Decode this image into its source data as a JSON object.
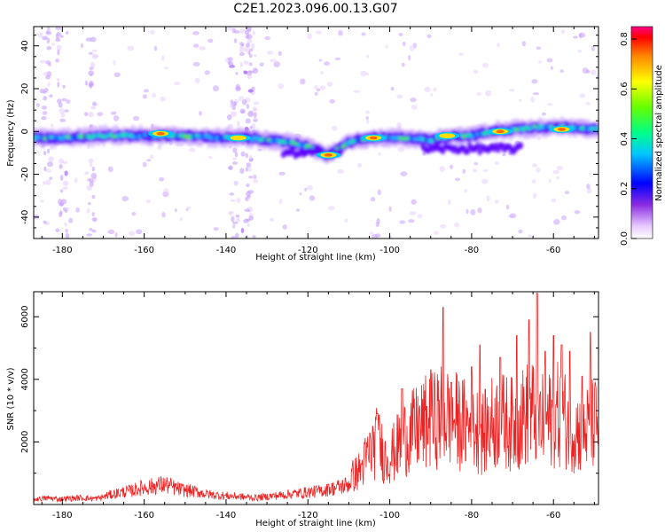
{
  "title": "C2E1.2023.096.00.13.G07",
  "chart_data": [
    {
      "type": "heatmap",
      "xlabel": "Height of straight line (km)",
      "ylabel": "Frequency (Hz)",
      "xlim": [
        -187,
        -49
      ],
      "ylim": [
        -50,
        49
      ],
      "x_ticks": [
        -180,
        -160,
        -140,
        -120,
        -100,
        -80,
        -60
      ],
      "y_ticks": [
        -40,
        -20,
        0,
        20,
        40
      ],
      "colorbar": {
        "label": "Normalized spectral amplitude",
        "range": [
          0.0,
          0.85
        ],
        "ticks": [
          0.0,
          0.2,
          0.4,
          0.6,
          0.8
        ]
      },
      "trace": {
        "x": [
          -187,
          -180,
          -170,
          -160,
          -150,
          -140,
          -135,
          -130,
          -125,
          -120,
          -115,
          -110,
          -105,
          -100,
          -95,
          -90,
          -85,
          -80,
          -75,
          -70,
          -65,
          -60,
          -55,
          -50
        ],
        "y": [
          -3,
          -3,
          -2,
          -2,
          -2,
          -3,
          -3,
          -4,
          -5,
          -7,
          -11,
          -5,
          -3,
          -3,
          -3,
          -4,
          -2,
          -2,
          0,
          1,
          2,
          2,
          2,
          1
        ]
      },
      "hotspots": [
        {
          "x": -156,
          "y": -1,
          "value": 0.85
        },
        {
          "x": -137,
          "y": -3,
          "value": 0.8
        },
        {
          "x": -115,
          "y": -11,
          "value": 0.85
        },
        {
          "x": -104,
          "y": -3,
          "value": 0.85
        },
        {
          "x": -86,
          "y": -2,
          "value": 0.8
        },
        {
          "x": -73,
          "y": 0,
          "value": 0.85
        },
        {
          "x": -58,
          "y": 1,
          "value": 0.85
        }
      ]
    },
    {
      "type": "line",
      "xlabel": "Height of straight line (km)",
      "ylabel": "SNR (10 * v/v)",
      "xlim": [
        -187,
        -49
      ],
      "ylim": [
        0,
        6800
      ],
      "x_ticks": [
        -180,
        -160,
        -140,
        -120,
        -100,
        -80,
        -60
      ],
      "y_ticks": [
        2000,
        4000,
        6000
      ],
      "series": [
        {
          "color": "#ee2222",
          "x": [
            -187,
            -185,
            -183,
            -181,
            -179,
            -177,
            -175,
            -173,
            -171,
            -169,
            -167,
            -165,
            -163,
            -161,
            -159,
            -157,
            -155,
            -153,
            -151,
            -149,
            -147,
            -145,
            -143,
            -141,
            -139,
            -137,
            -135,
            -133,
            -131,
            -129,
            -127,
            -125,
            -123,
            -121,
            -119,
            -117,
            -115,
            -113,
            -111,
            -109,
            -107,
            -105,
            -103,
            -101,
            -99,
            -97,
            -95,
            -93,
            -91,
            -89,
            -87,
            -85,
            -83,
            -81,
            -79,
            -77,
            -75,
            -73,
            -71,
            -69,
            -67,
            -65,
            -63,
            -61,
            -59,
            -57,
            -55,
            -53,
            -51,
            -49
          ],
          "values": [
            250,
            280,
            300,
            260,
            280,
            300,
            320,
            280,
            300,
            420,
            520,
            600,
            650,
            780,
            820,
            900,
            950,
            820,
            700,
            650,
            600,
            500,
            450,
            420,
            400,
            380,
            350,
            320,
            350,
            400,
            430,
            480,
            520,
            560,
            600,
            640,
            720,
            800,
            900,
            1050,
            1300,
            1900,
            2300,
            1700,
            1900,
            2400,
            2600,
            2800,
            3000,
            3100,
            3300,
            3200,
            3000,
            2900,
            2800,
            2600,
            3000,
            3100,
            3000,
            2900,
            3300,
            3400,
            3000,
            3100,
            3300,
            3100,
            2800,
            2600,
            2900,
            3000
          ],
          "peaks": [
            {
              "x": -115,
              "y": 650
            },
            {
              "x": -107,
              "y": 1300
            },
            {
              "x": -103,
              "y": 2900
            },
            {
              "x": -97,
              "y": 3700
            },
            {
              "x": -90,
              "y": 4300
            },
            {
              "x": -87,
              "y": 6300
            },
            {
              "x": -85,
              "y": 3900
            },
            {
              "x": -80,
              "y": 4400
            },
            {
              "x": -78,
              "y": 5100
            },
            {
              "x": -73,
              "y": 4700
            },
            {
              "x": -69,
              "y": 5400
            },
            {
              "x": -66,
              "y": 5900
            },
            {
              "x": -64,
              "y": 6750
            },
            {
              "x": -62,
              "y": 4900
            },
            {
              "x": -60,
              "y": 5400
            },
            {
              "x": -58,
              "y": 5100
            },
            {
              "x": -56,
              "y": 4900
            },
            {
              "x": -53,
              "y": 4100
            },
            {
              "x": -51,
              "y": 5500
            }
          ]
        }
      ]
    }
  ]
}
